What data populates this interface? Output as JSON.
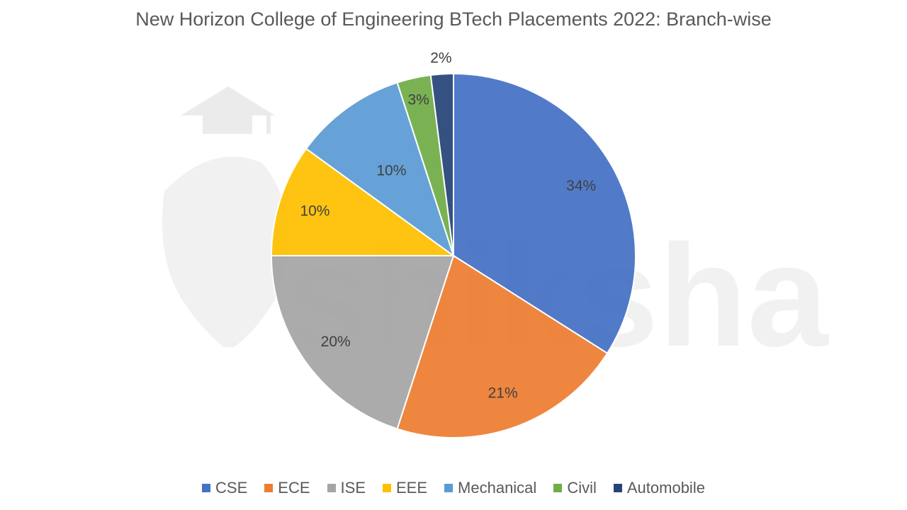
{
  "watermark": {
    "text": "shiksha"
  },
  "chart_data": {
    "type": "pie",
    "title": "New Horizon College of Engineering BTech Placements 2022: Branch-wise",
    "categories": [
      "CSE",
      "ECE",
      "ISE",
      "EEE",
      "Mechanical",
      "Civil",
      "Automobile"
    ],
    "values": [
      34,
      21,
      20,
      10,
      10,
      3,
      2
    ],
    "labels": [
      "34%",
      "21%",
      "20%",
      "10%",
      "10%",
      "3%",
      "2%"
    ],
    "colors": [
      "#4472C4",
      "#ED7D31",
      "#A5A5A5",
      "#FFC000",
      "#5B9BD5",
      "#70AD47",
      "#264478"
    ],
    "legend_position": "bottom"
  }
}
